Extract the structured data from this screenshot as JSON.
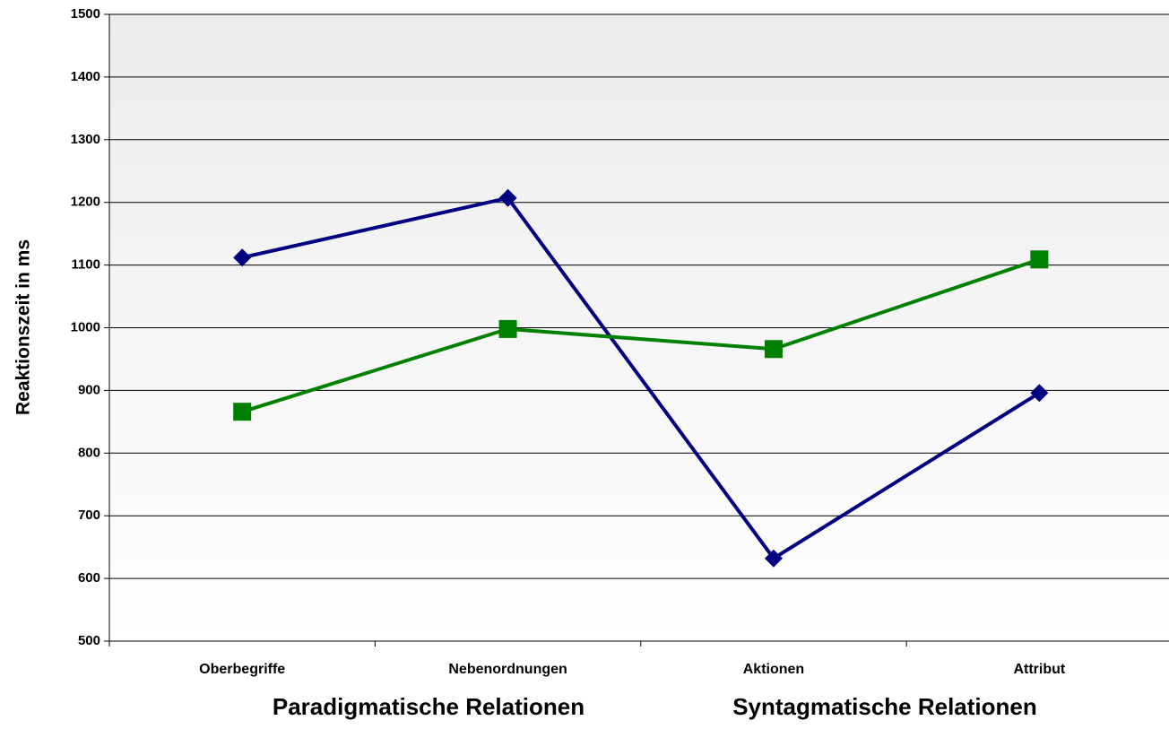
{
  "chart_data": {
    "type": "line",
    "y_label": "Reaktionszeit in ms",
    "categories": [
      "Oberbegriffe",
      "Nebenordnungen",
      "Aktionen",
      "Attribut"
    ],
    "group_labels": [
      "Paradigmatische Relationen",
      "Syntagmatische Relationen"
    ],
    "series": [
      {
        "color": "#000080",
        "marker": "diamond",
        "values": [
          1112,
          1207,
          632,
          896
        ]
      },
      {
        "color": "#008000",
        "marker": "square",
        "values": [
          866,
          998,
          966,
          1109
        ]
      }
    ],
    "ylim": [
      500,
      1500
    ],
    "yticks": [
      500,
      600,
      700,
      800,
      900,
      1000,
      1100,
      1200,
      1300,
      1400,
      1500
    ],
    "grid": true
  }
}
